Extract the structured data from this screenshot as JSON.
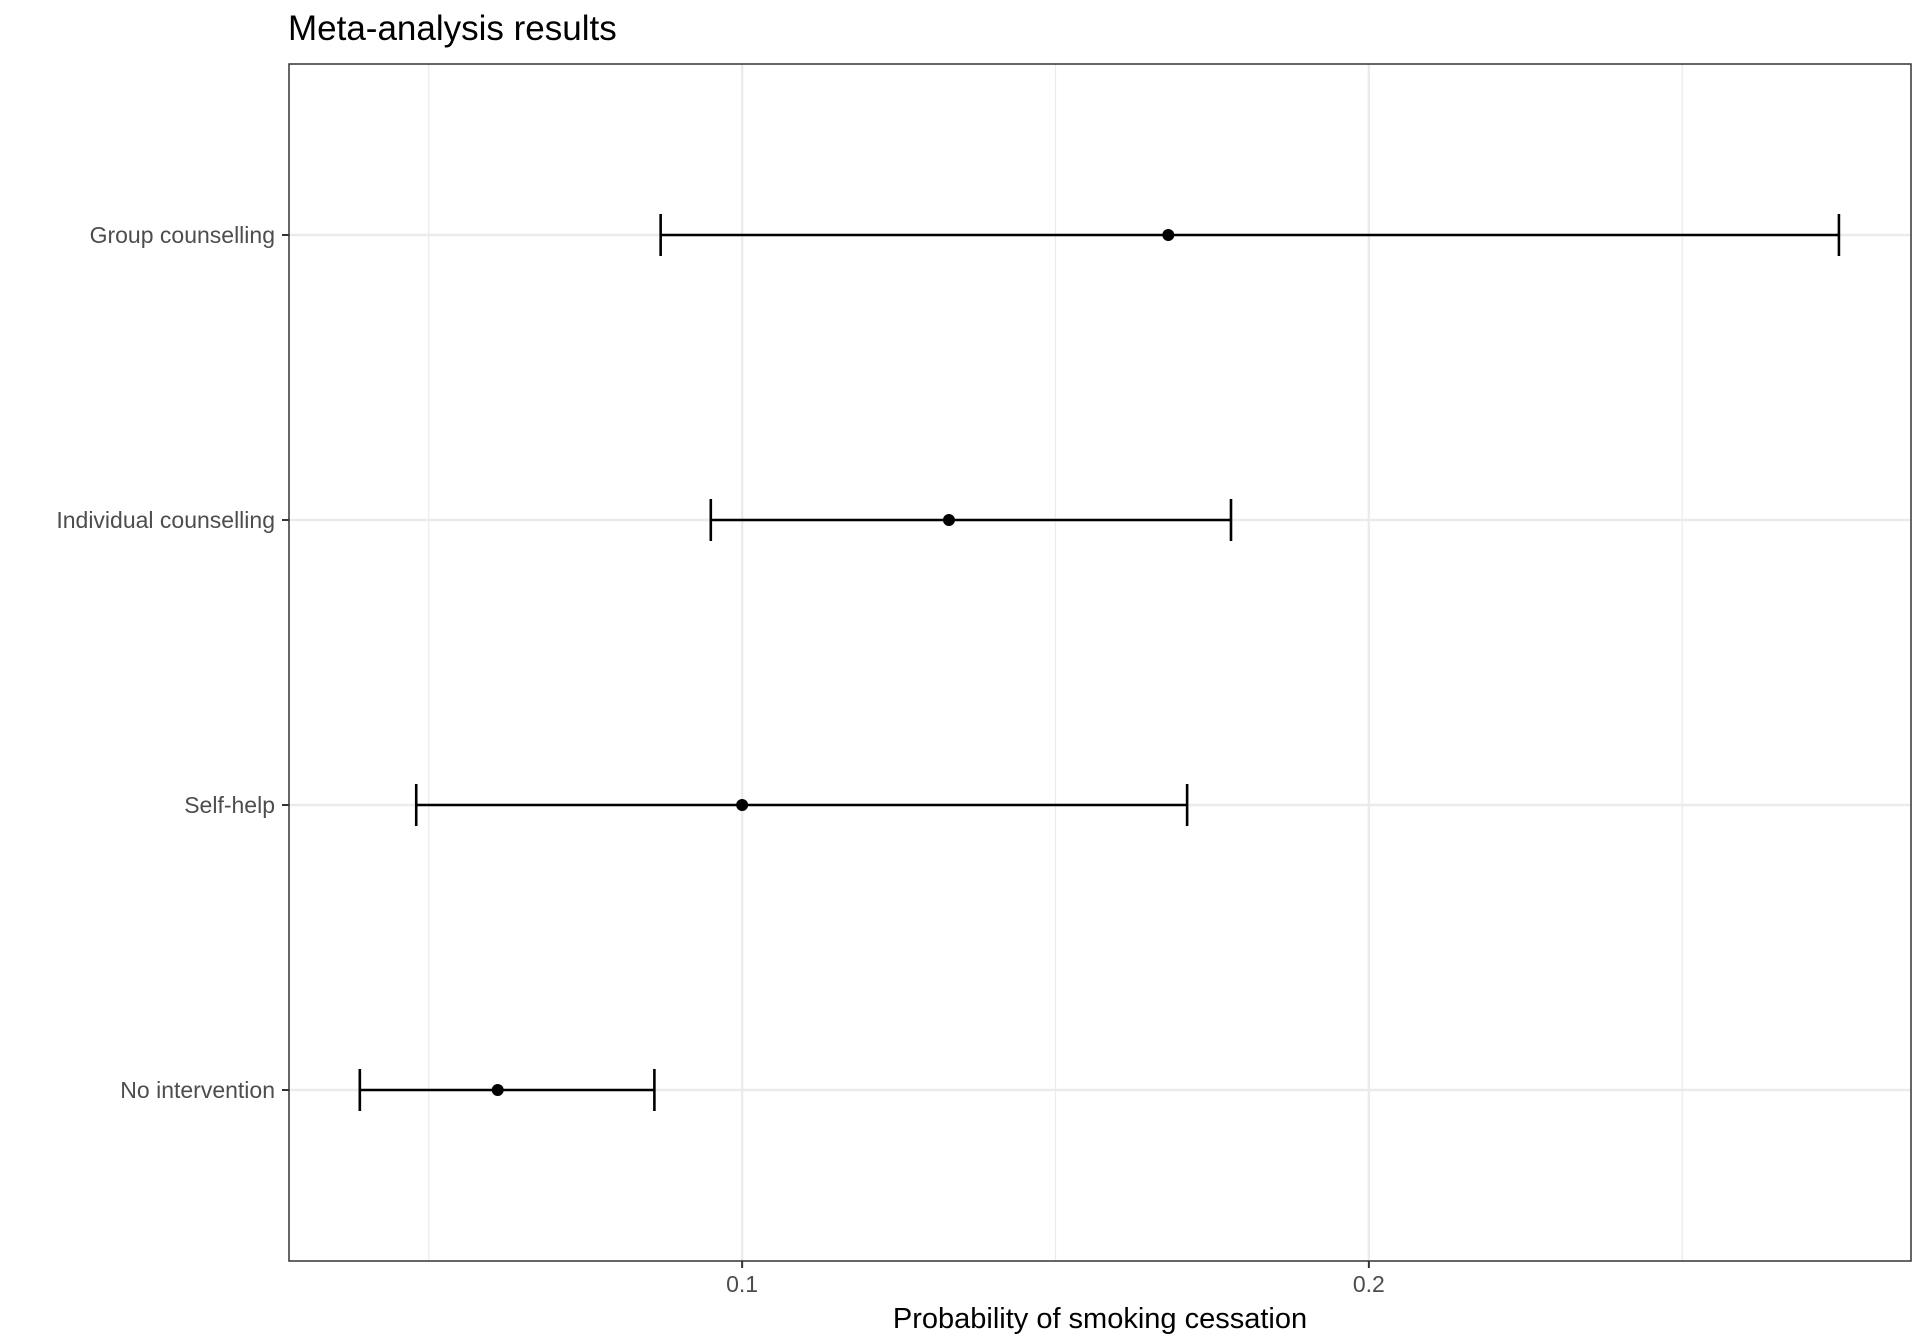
{
  "chart_data": {
    "type": "errorbar",
    "title": "Meta-analysis results",
    "xlabel": "Probability of smoking cessation",
    "ylabel": "",
    "xlim": [
      0.0277,
      0.2865
    ],
    "x_ticks": [
      0.1,
      0.2
    ],
    "x_tick_labels": [
      "0.1",
      "0.2"
    ],
    "x_minor_ticks": [
      0.05,
      0.15,
      0.25
    ],
    "grid": true,
    "orientation": "horizontal",
    "categories": [
      "No intervention",
      "Self-help",
      "Individual counselling",
      "Group counselling"
    ],
    "series": [
      {
        "estimate": [
          0.061,
          0.1,
          0.133,
          0.168
        ],
        "lower": [
          0.039,
          0.048,
          0.095,
          0.087
        ],
        "upper": [
          0.086,
          0.171,
          0.178,
          0.275
        ]
      }
    ]
  }
}
